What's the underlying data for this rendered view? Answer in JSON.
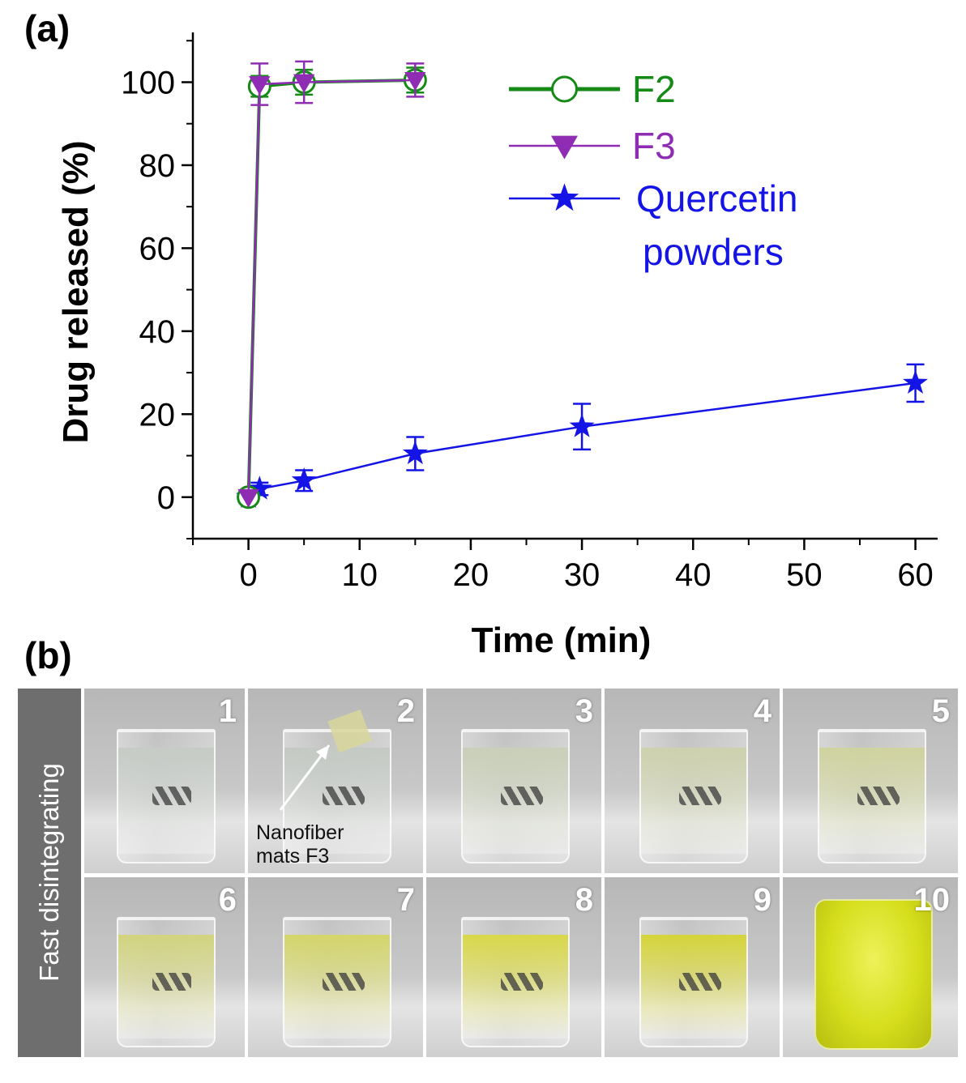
{
  "panel_a_label": "(a)",
  "panel_b_label": "(b)",
  "chart_data": {
    "type": "line",
    "xlabel": "Time (min)",
    "ylabel": "Drug released (%)",
    "xlim": [
      -5,
      62
    ],
    "ylim": [
      -10,
      112
    ],
    "xticks": [
      0,
      10,
      20,
      30,
      40,
      50,
      60
    ],
    "yticks": [
      0,
      20,
      40,
      60,
      80,
      100
    ],
    "grid": false,
    "legend_position": "top-right",
    "series": [
      {
        "name": "F2",
        "color": "#168a16",
        "marker": "circle-open",
        "x": [
          0,
          1,
          5,
          15
        ],
        "y": [
          0,
          99,
          100,
          100.5
        ],
        "err": [
          0,
          2.5,
          3,
          3
        ]
      },
      {
        "name": "F3",
        "color": "#8e2db4",
        "marker": "triangle-down",
        "x": [
          0,
          1,
          5,
          15
        ],
        "y": [
          0,
          99.5,
          100,
          100.5
        ],
        "err": [
          0,
          5,
          5,
          4
        ]
      },
      {
        "name": "Quercetin powders",
        "name_lines": [
          "Quercetin",
          "powders"
        ],
        "color": "#1414e6",
        "marker": "star",
        "x": [
          0,
          1,
          5,
          15,
          30,
          60
        ],
        "y": [
          0,
          2,
          4,
          10.5,
          17,
          27.5
        ],
        "err": [
          0,
          1.5,
          2.5,
          4,
          5.5,
          4.5
        ]
      }
    ]
  },
  "panel_b": {
    "side_label": "Fast disintegrating",
    "annotation_lines": [
      "Nanofiber",
      "mats F3"
    ],
    "photos": [
      {
        "num": "1",
        "liquid": "#c6cbc6"
      },
      {
        "num": "2",
        "liquid": "#c4c9c4"
      },
      {
        "num": "3",
        "liquid": "#c9cfb8"
      },
      {
        "num": "4",
        "liquid": "#cdd1ad"
      },
      {
        "num": "5",
        "liquid": "#cfd39e"
      },
      {
        "num": "6",
        "liquid": "#d2d47f"
      },
      {
        "num": "7",
        "liquid": "#d4d56a"
      },
      {
        "num": "8",
        "liquid": "#d9d84a"
      },
      {
        "num": "9",
        "liquid": "#d6d43a"
      },
      {
        "num": "10",
        "liquid": "#d9de1e"
      }
    ]
  }
}
